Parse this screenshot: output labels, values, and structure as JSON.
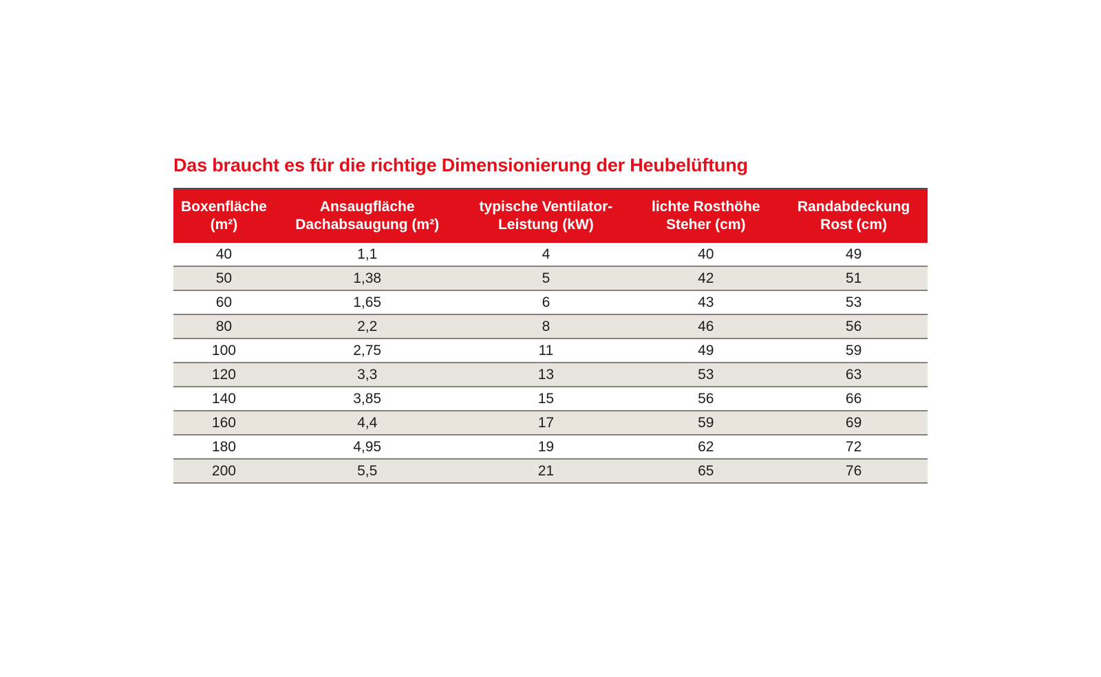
{
  "title": "Das braucht es für die richtige Dimensionierung der Heubelüftung",
  "colors": {
    "title_red": "#e2101b",
    "header_red": "#e2101b",
    "header_text": "#ffffff",
    "row_white": "#ffffff",
    "row_alt": "#e8e5df",
    "separator": "#83837d",
    "top_border": "#4f4f51",
    "cell_text": "#1d1d1b"
  },
  "table": {
    "headers": [
      {
        "line1": "Boxenfläche",
        "line2": "(m²)"
      },
      {
        "line1": "Ansaugfläche",
        "line2": "Dachabsaugung (m²)"
      },
      {
        "line1": "typische Ventilator-",
        "line2": "Leistung (kW)"
      },
      {
        "line1": "lichte Rosthöhe",
        "line2": "Steher (cm)"
      },
      {
        "line1": "Randabdeckung",
        "line2": "Rost (cm)"
      }
    ],
    "rows": [
      [
        "40",
        "1,1",
        "4",
        "40",
        "49"
      ],
      [
        "50",
        "1,38",
        "5",
        "42",
        "51"
      ],
      [
        "60",
        "1,65",
        "6",
        "43",
        "53"
      ],
      [
        "80",
        "2,2",
        "8",
        "46",
        "56"
      ],
      [
        "100",
        "2,75",
        "11",
        "49",
        "59"
      ],
      [
        "120",
        "3,3",
        "13",
        "53",
        "63"
      ],
      [
        "140",
        "3,85",
        "15",
        "56",
        "66"
      ],
      [
        "160",
        "4,4",
        "17",
        "59",
        "69"
      ],
      [
        "180",
        "4,95",
        "19",
        "62",
        "72"
      ],
      [
        "200",
        "5,5",
        "21",
        "65",
        "76"
      ]
    ]
  },
  "chart_data": {
    "type": "table",
    "title": "Das braucht es für die richtige Dimensionierung der Heubelüftung",
    "columns": [
      "Boxenfläche (m²)",
      "Ansaugfläche Dachabsaugung (m²)",
      "typische Ventilator-Leistung (kW)",
      "lichte Rosthöhe Steher (cm)",
      "Randabdeckung Rost (cm)"
    ],
    "rows": [
      [
        40,
        1.1,
        4,
        40,
        49
      ],
      [
        50,
        1.38,
        5,
        42,
        51
      ],
      [
        60,
        1.65,
        6,
        43,
        53
      ],
      [
        80,
        2.2,
        8,
        46,
        56
      ],
      [
        100,
        2.75,
        11,
        49,
        59
      ],
      [
        120,
        3.3,
        13,
        53,
        63
      ],
      [
        140,
        3.85,
        15,
        56,
        66
      ],
      [
        160,
        4.4,
        17,
        59,
        69
      ],
      [
        180,
        4.95,
        19,
        62,
        72
      ],
      [
        200,
        5.5,
        21,
        65,
        76
      ]
    ],
    "layout_hints": {
      "header_background": "#e2101b",
      "alternating_rows": true,
      "decimal_separator": ","
    }
  }
}
